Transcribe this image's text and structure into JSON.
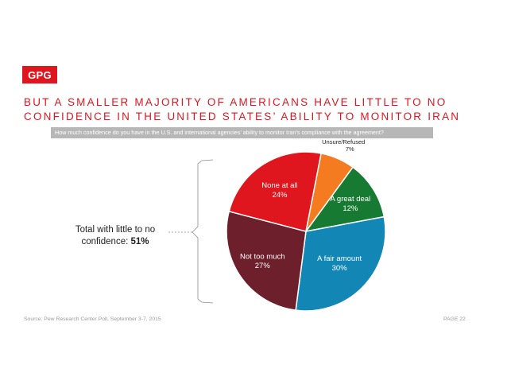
{
  "logo": {
    "text": "GPG",
    "color": "#e0161f"
  },
  "title": {
    "line1": "BUT A SMALLER MAJORITY OF AMERICANS HAVE LITTLE TO NO",
    "line2": "CONFIDENCE IN THE UNITED STATES’ ABILITY TO MONITOR IRAN",
    "color": "#e0161f"
  },
  "question": "How much confidence do you have in the U.S. and international agencies’ ability to monitor Iran’s compliance with the agreement?",
  "callout": {
    "line1": "Total with little to no",
    "line2": "confidence:",
    "value": "51%"
  },
  "chart_data": {
    "type": "pie",
    "slices": [
      {
        "label": "Unsure/Refused",
        "value": 7,
        "display": "7%",
        "color": "#f47b20"
      },
      {
        "label": "A great deal",
        "value": 12,
        "display": "12%",
        "color": "#177a32"
      },
      {
        "label": "A fair amount",
        "value": 30,
        "display": "30%",
        "color": "#1287b5"
      },
      {
        "label": "Not too much",
        "value": 27,
        "display": "27%",
        "color": "#6e1f2c"
      },
      {
        "label": "None at all",
        "value": 24,
        "display": "24%",
        "color": "#e0161f"
      }
    ]
  },
  "footer": {
    "source": "Source: Pew Research Center Poll, September 3-7, 2015",
    "page": "PAGE 22"
  }
}
